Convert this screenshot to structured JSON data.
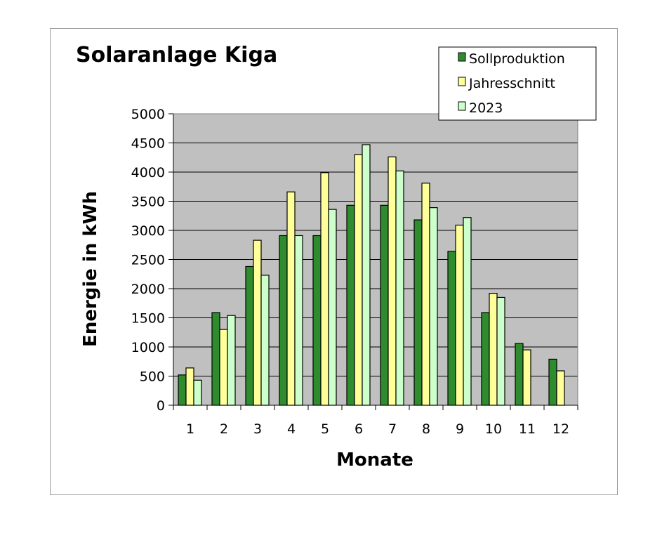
{
  "chart_data": {
    "type": "bar",
    "title": "Solaranlage Kiga",
    "xlabel": "Monate",
    "ylabel": "Energie in kWh",
    "categories": [
      "1",
      "2",
      "3",
      "4",
      "5",
      "6",
      "7",
      "8",
      "9",
      "10",
      "11",
      "12"
    ],
    "ylim": [
      0,
      5000
    ],
    "yticks": [
      "0",
      "500",
      "1000",
      "1500",
      "2000",
      "2500",
      "3000",
      "3500",
      "4000",
      "4500",
      "5000"
    ],
    "grid": true,
    "legend_position": "top-right",
    "series": [
      {
        "name": "Sollproduktion",
        "color": "#2e8b2e",
        "values": [
          520,
          1590,
          2380,
          2910,
          2910,
          3430,
          3430,
          3180,
          2640,
          1590,
          1060,
          790
        ]
      },
      {
        "name": "Jahresschnitt",
        "color": "#ffff99",
        "values": [
          640,
          1300,
          2830,
          3660,
          3990,
          4300,
          4260,
          3810,
          3090,
          1920,
          950,
          590
        ]
      },
      {
        "name": "2023",
        "color": "#ccffcc",
        "values": [
          430,
          1540,
          2230,
          2910,
          3360,
          4470,
          4020,
          3390,
          3220,
          1850,
          null,
          null
        ]
      }
    ]
  }
}
